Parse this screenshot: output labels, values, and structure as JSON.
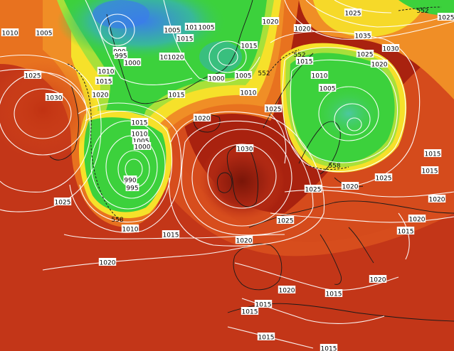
{
  "map": {
    "pressure_labels": [
      {
        "id": "p-1010-nw",
        "text": "1010"
      },
      {
        "id": "p-1005-nw",
        "text": "1005"
      },
      {
        "id": "p-1010-gl-a",
        "text": "1010"
      },
      {
        "id": "p-1005-gl",
        "text": "1005"
      },
      {
        "id": "p-1010-gl-b",
        "text": "1010"
      },
      {
        "id": "p-1005-gl-b",
        "text": "1005"
      },
      {
        "id": "p-1015-gl",
        "text": "1015"
      },
      {
        "id": "p-990-gl",
        "text": "990"
      },
      {
        "id": "p-995-gl",
        "text": "995"
      },
      {
        "id": "p-1000-gl",
        "text": "1000"
      },
      {
        "id": "p-1020-gl",
        "text": "1020"
      },
      {
        "id": "p-1020-n",
        "text": "1020"
      },
      {
        "id": "p-1020-ne",
        "text": "1020"
      },
      {
        "id": "p-1025-ne",
        "text": "1025"
      },
      {
        "id": "p-1035-ne",
        "text": "1035"
      },
      {
        "id": "p-1030-ne",
        "text": "1030"
      },
      {
        "id": "p-1025-ne2",
        "text": "1025"
      },
      {
        "id": "p-1015-gl2",
        "text": "1015"
      },
      {
        "id": "p-1000-gl2",
        "text": "1000"
      },
      {
        "id": "p-1005-ice",
        "text": "1005"
      },
      {
        "id": "p-1010-ice",
        "text": "1010"
      },
      {
        "id": "p-1015-ice",
        "text": "1015"
      },
      {
        "id": "p-1010-w",
        "text": "1010"
      },
      {
        "id": "p-1015-w",
        "text": "1015"
      },
      {
        "id": "p-1020-w",
        "text": "1020"
      },
      {
        "id": "p-1025-w",
        "text": "1025"
      },
      {
        "id": "p-1030-w",
        "text": "1030"
      },
      {
        "id": "p-1020-ice2",
        "text": "1020"
      },
      {
        "id": "p-1015-atl",
        "text": "1015"
      },
      {
        "id": "p-1010-atl",
        "text": "1010"
      },
      {
        "id": "p-1005-atl",
        "text": "1005"
      },
      {
        "id": "p-1000-atl",
        "text": "1000"
      },
      {
        "id": "p-990-atl",
        "text": "990"
      },
      {
        "id": "p-995-atl",
        "text": "995"
      },
      {
        "id": "p-1025-atl-w",
        "text": "1025"
      },
      {
        "id": "p-1010-atl-s",
        "text": "1010"
      },
      {
        "id": "p-1015-atl-s",
        "text": "1015"
      },
      {
        "id": "p-1020-atl-s",
        "text": "1020"
      },
      {
        "id": "p-1030-uk",
        "text": "1030"
      },
      {
        "id": "p-1020-bis",
        "text": "1020"
      },
      {
        "id": "p-1025-no",
        "text": "1025"
      },
      {
        "id": "p-1015-no",
        "text": "1015"
      },
      {
        "id": "p-1010-scn",
        "text": "1010"
      },
      {
        "id": "p-1005-scn",
        "text": "1005"
      },
      {
        "id": "p-1020-scn",
        "text": "1020"
      },
      {
        "id": "p-1025-de",
        "text": "1025"
      },
      {
        "id": "p-1020-pl",
        "text": "1020"
      },
      {
        "id": "p-1025-fr",
        "text": "1025"
      },
      {
        "id": "p-1025-ne3",
        "text": "1025"
      },
      {
        "id": "p-1015-ru",
        "text": "1015"
      },
      {
        "id": "p-1015-ru2",
        "text": "1015"
      },
      {
        "id": "p-1020-ru",
        "text": "1020"
      },
      {
        "id": "p-1015-bal",
        "text": "1015"
      },
      {
        "id": "p-1020-med",
        "text": "1020"
      },
      {
        "id": "p-1020-it",
        "text": "1020"
      },
      {
        "id": "p-1015-sp",
        "text": "1015"
      },
      {
        "id": "p-1015-nafr",
        "text": "1015"
      },
      {
        "id": "p-1015-afr",
        "text": "1015"
      },
      {
        "id": "p-1015-afr2",
        "text": "1015"
      },
      {
        "id": "p-1020-tk",
        "text": "1020"
      },
      {
        "id": "p-1015-bot",
        "text": "1015"
      },
      {
        "id": "p-1025-tr",
        "text": "1025"
      }
    ],
    "thickness_labels": [
      {
        "id": "t-552-ne",
        "text": "552"
      },
      {
        "id": "t-552-n",
        "text": "552"
      },
      {
        "id": "t-552-no",
        "text": "552"
      },
      {
        "id": "t-558-scn",
        "text": "558"
      },
      {
        "id": "t-558-atl",
        "text": "558"
      }
    ],
    "colors": {
      "deep_red": "#8a1a0c",
      "red": "#c8391a",
      "orange_red": "#d9501e",
      "orange": "#e8721f",
      "orange_light": "#f08e26",
      "yellow": "#f6e12a",
      "green_yellow": "#a8e03a",
      "green": "#3cd13c",
      "green_dark": "#2ec04a",
      "teal": "#38b89a",
      "blue": "#3a7ee8",
      "blue_light": "#4aa4f0"
    }
  }
}
